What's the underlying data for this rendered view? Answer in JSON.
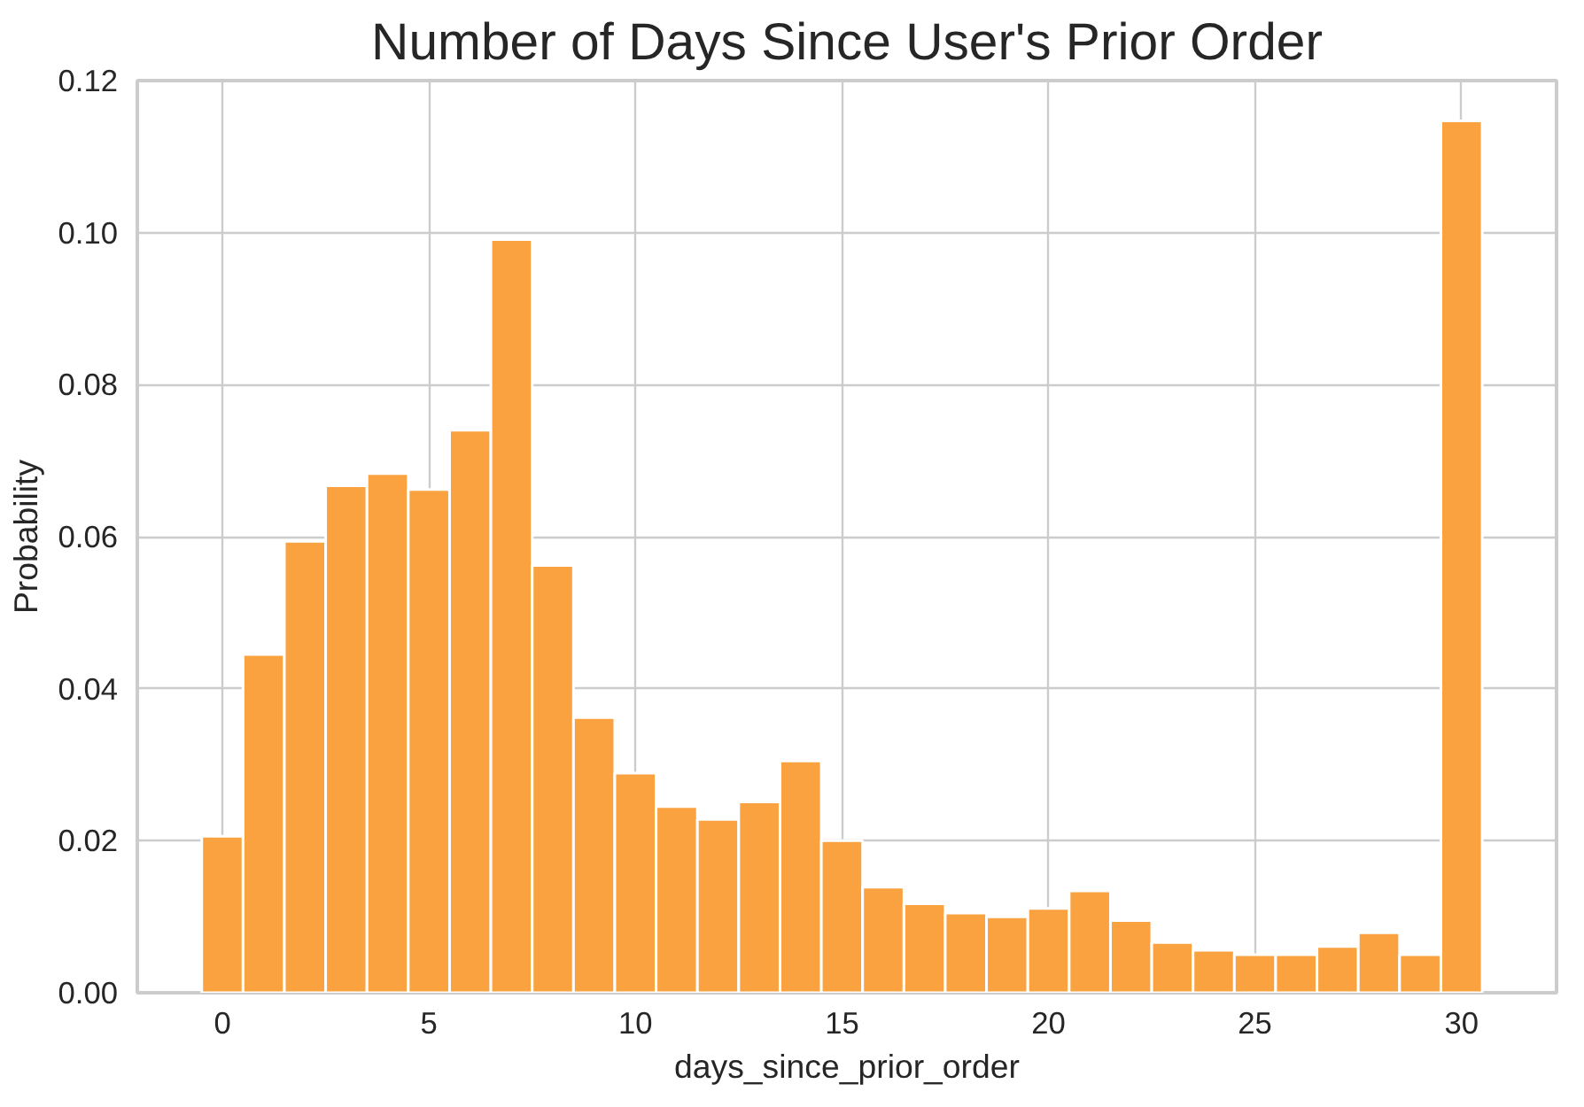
{
  "chart_data": {
    "type": "histogram",
    "title": "Number of Days Since User's Prior Order",
    "xlabel": "days_since_prior_order",
    "ylabel": "Probability",
    "bins": [
      -0.5,
      0.5,
      1.5,
      2.5,
      3.5,
      4.5,
      5.5,
      6.5,
      7.5,
      8.5,
      9.5,
      10.5,
      11.5,
      12.5,
      13.5,
      14.5,
      15.5,
      16.5,
      17.5,
      18.5,
      19.5,
      20.5,
      21.5,
      22.5,
      23.5,
      24.5,
      25.5,
      26.5,
      27.5,
      28.5,
      29.5,
      30.5
    ],
    "values": [
      0.0206,
      0.0445,
      0.0594,
      0.0667,
      0.0683,
      0.0662,
      0.074,
      0.0991,
      0.0562,
      0.0362,
      0.0289,
      0.0245,
      0.0228,
      0.0251,
      0.0305,
      0.02,
      0.0139,
      0.0117,
      0.0105,
      0.01,
      0.0111,
      0.0134,
      0.0095,
      0.0066,
      0.0056,
      0.005,
      0.005,
      0.0061,
      0.0079,
      0.005,
      0.1147
    ],
    "color": "#f9a23f",
    "xlim": [
      -2.06,
      32.3
    ],
    "ylim": [
      0,
      0.12
    ],
    "xticks": [
      0,
      5,
      10,
      15,
      20,
      25,
      30
    ],
    "yticks": [
      {
        "value": 0,
        "label": "0.00"
      },
      {
        "value": 0.02,
        "label": "0.02"
      },
      {
        "value": 0.04,
        "label": "0.04"
      },
      {
        "value": 0.06,
        "label": "0.06"
      },
      {
        "value": 0.08,
        "label": "0.08"
      },
      {
        "value": 0.1,
        "label": "0.10"
      },
      {
        "value": 0.12,
        "label": "0.12"
      }
    ],
    "grid": true
  }
}
